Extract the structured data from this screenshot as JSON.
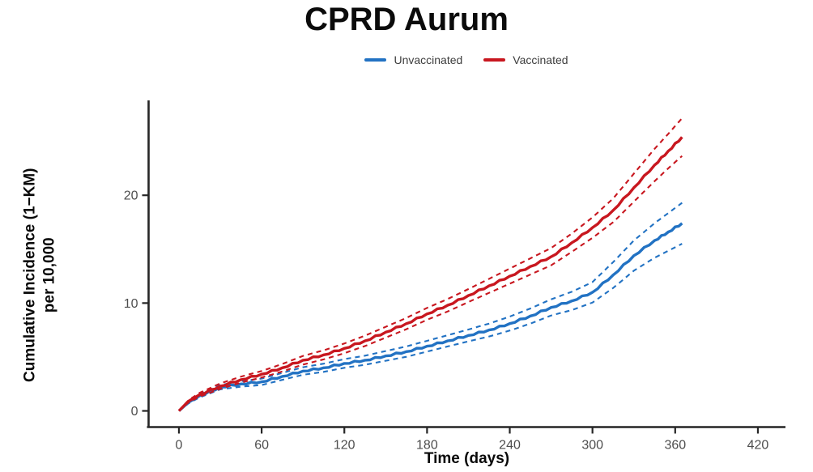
{
  "chart_data": {
    "type": "line",
    "title": "CPRD Aurum",
    "xlabel": "Time (days)",
    "ylabel": "Cumulative Incidence (1−KM) per 10,000",
    "ylabel_line1": "Cumulative Incidence (1−KM)",
    "ylabel_line2": "per 10,000",
    "x_ticks": [
      0,
      60,
      120,
      180,
      240,
      300,
      360,
      420
    ],
    "y_ticks": [
      0,
      10,
      20
    ],
    "xlim": [
      -22,
      440
    ],
    "ylim": [
      -1.5,
      28.8
    ],
    "grid": false,
    "legend_position": "top",
    "ci_style": "dashed",
    "colors": {
      "unvaccinated": "#2272c3",
      "vaccinated": "#c8171f",
      "axis": "#262626",
      "tick_labels": "#4d4d4d"
    },
    "x": [
      0,
      7,
      15,
      30,
      45,
      60,
      75,
      90,
      105,
      120,
      135,
      150,
      165,
      180,
      195,
      210,
      225,
      240,
      255,
      270,
      285,
      300,
      315,
      330,
      345,
      355,
      365
    ],
    "series": [
      {
        "name": "Unvaccinated",
        "color": "#2272c3",
        "values": [
          0,
          0.8,
          1.4,
          2.2,
          2.5,
          2.7,
          3.2,
          3.7,
          4.0,
          4.4,
          4.7,
          5.1,
          5.5,
          6.0,
          6.5,
          7.0,
          7.5,
          8.1,
          8.8,
          9.6,
          10.2,
          11.0,
          12.6,
          14.4,
          15.8,
          16.6,
          17.4
        ],
        "ci_lower": [
          0,
          0.7,
          1.25,
          2.0,
          2.25,
          2.4,
          2.88,
          3.35,
          3.62,
          4.0,
          4.28,
          4.65,
          5.02,
          5.5,
          5.98,
          6.45,
          6.9,
          7.45,
          8.1,
          8.85,
          9.35,
          10.05,
          11.4,
          13.0,
          14.2,
          14.85,
          15.5
        ],
        "ci_upper": [
          0,
          0.9,
          1.55,
          2.4,
          2.75,
          3.0,
          3.52,
          4.05,
          4.38,
          4.8,
          5.12,
          5.55,
          5.98,
          6.5,
          7.02,
          7.55,
          8.1,
          8.75,
          9.5,
          10.35,
          11.05,
          11.95,
          13.8,
          15.8,
          17.4,
          18.35,
          19.3
        ]
      },
      {
        "name": "Vaccinated",
        "color": "#c8171f",
        "values": [
          0,
          0.9,
          1.5,
          2.3,
          2.9,
          3.4,
          4.0,
          4.7,
          5.2,
          5.8,
          6.5,
          7.3,
          8.1,
          9.0,
          9.8,
          10.7,
          11.6,
          12.5,
          13.4,
          14.3,
          15.6,
          17.0,
          18.6,
          20.7,
          22.8,
          24.1,
          25.4
        ],
        "ci_lower": [
          0,
          0.8,
          1.32,
          2.05,
          2.62,
          3.1,
          3.65,
          4.3,
          4.78,
          5.35,
          6.02,
          6.8,
          7.58,
          8.45,
          9.22,
          10.1,
          10.95,
          11.8,
          12.65,
          13.5,
          14.75,
          16.05,
          17.5,
          19.4,
          21.3,
          22.5,
          23.65
        ],
        "ci_upper": [
          0,
          1.0,
          1.68,
          2.55,
          3.18,
          3.7,
          4.35,
          5.1,
          5.62,
          6.25,
          6.98,
          7.8,
          8.62,
          9.55,
          10.38,
          11.3,
          12.25,
          13.2,
          14.15,
          15.1,
          16.45,
          17.95,
          19.7,
          22.0,
          24.3,
          25.7,
          27.15
        ]
      }
    ]
  }
}
